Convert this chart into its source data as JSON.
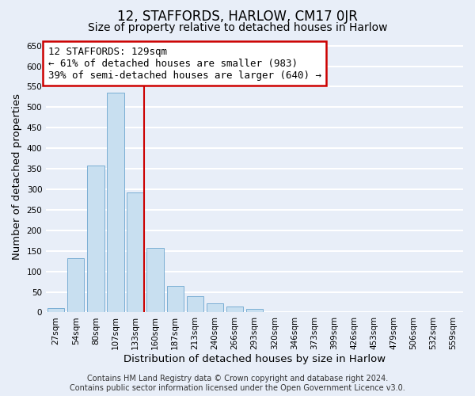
{
  "title": "12, STAFFORDS, HARLOW, CM17 0JR",
  "subtitle": "Size of property relative to detached houses in Harlow",
  "xlabel": "Distribution of detached houses by size in Harlow",
  "ylabel": "Number of detached properties",
  "bar_labels": [
    "27sqm",
    "54sqm",
    "80sqm",
    "107sqm",
    "133sqm",
    "160sqm",
    "187sqm",
    "213sqm",
    "240sqm",
    "266sqm",
    "293sqm",
    "320sqm",
    "346sqm",
    "373sqm",
    "399sqm",
    "426sqm",
    "453sqm",
    "479sqm",
    "506sqm",
    "532sqm",
    "559sqm"
  ],
  "bar_values": [
    10,
    133,
    358,
    535,
    292,
    158,
    65,
    40,
    22,
    15,
    8,
    0,
    0,
    0,
    0,
    0,
    1,
    0,
    0,
    0,
    1
  ],
  "bar_color": "#c8dff0",
  "bar_edge_color": "#7aaed4",
  "vline_x_index": 4,
  "vline_color": "#cc0000",
  "annotation_text": "12 STAFFORDS: 129sqm\n← 61% of detached houses are smaller (983)\n39% of semi-detached houses are larger (640) →",
  "annotation_box_color": "white",
  "annotation_box_edge_color": "#cc0000",
  "ylim": [
    0,
    660
  ],
  "yticks": [
    0,
    50,
    100,
    150,
    200,
    250,
    300,
    350,
    400,
    450,
    500,
    550,
    600,
    650
  ],
  "footer_line1": "Contains HM Land Registry data © Crown copyright and database right 2024.",
  "footer_line2": "Contains public sector information licensed under the Open Government Licence v3.0.",
  "background_color": "#e8eef8",
  "grid_color": "white",
  "title_fontsize": 12,
  "subtitle_fontsize": 10,
  "axis_label_fontsize": 9.5,
  "tick_fontsize": 7.5,
  "footer_fontsize": 7,
  "annotation_fontsize": 9
}
